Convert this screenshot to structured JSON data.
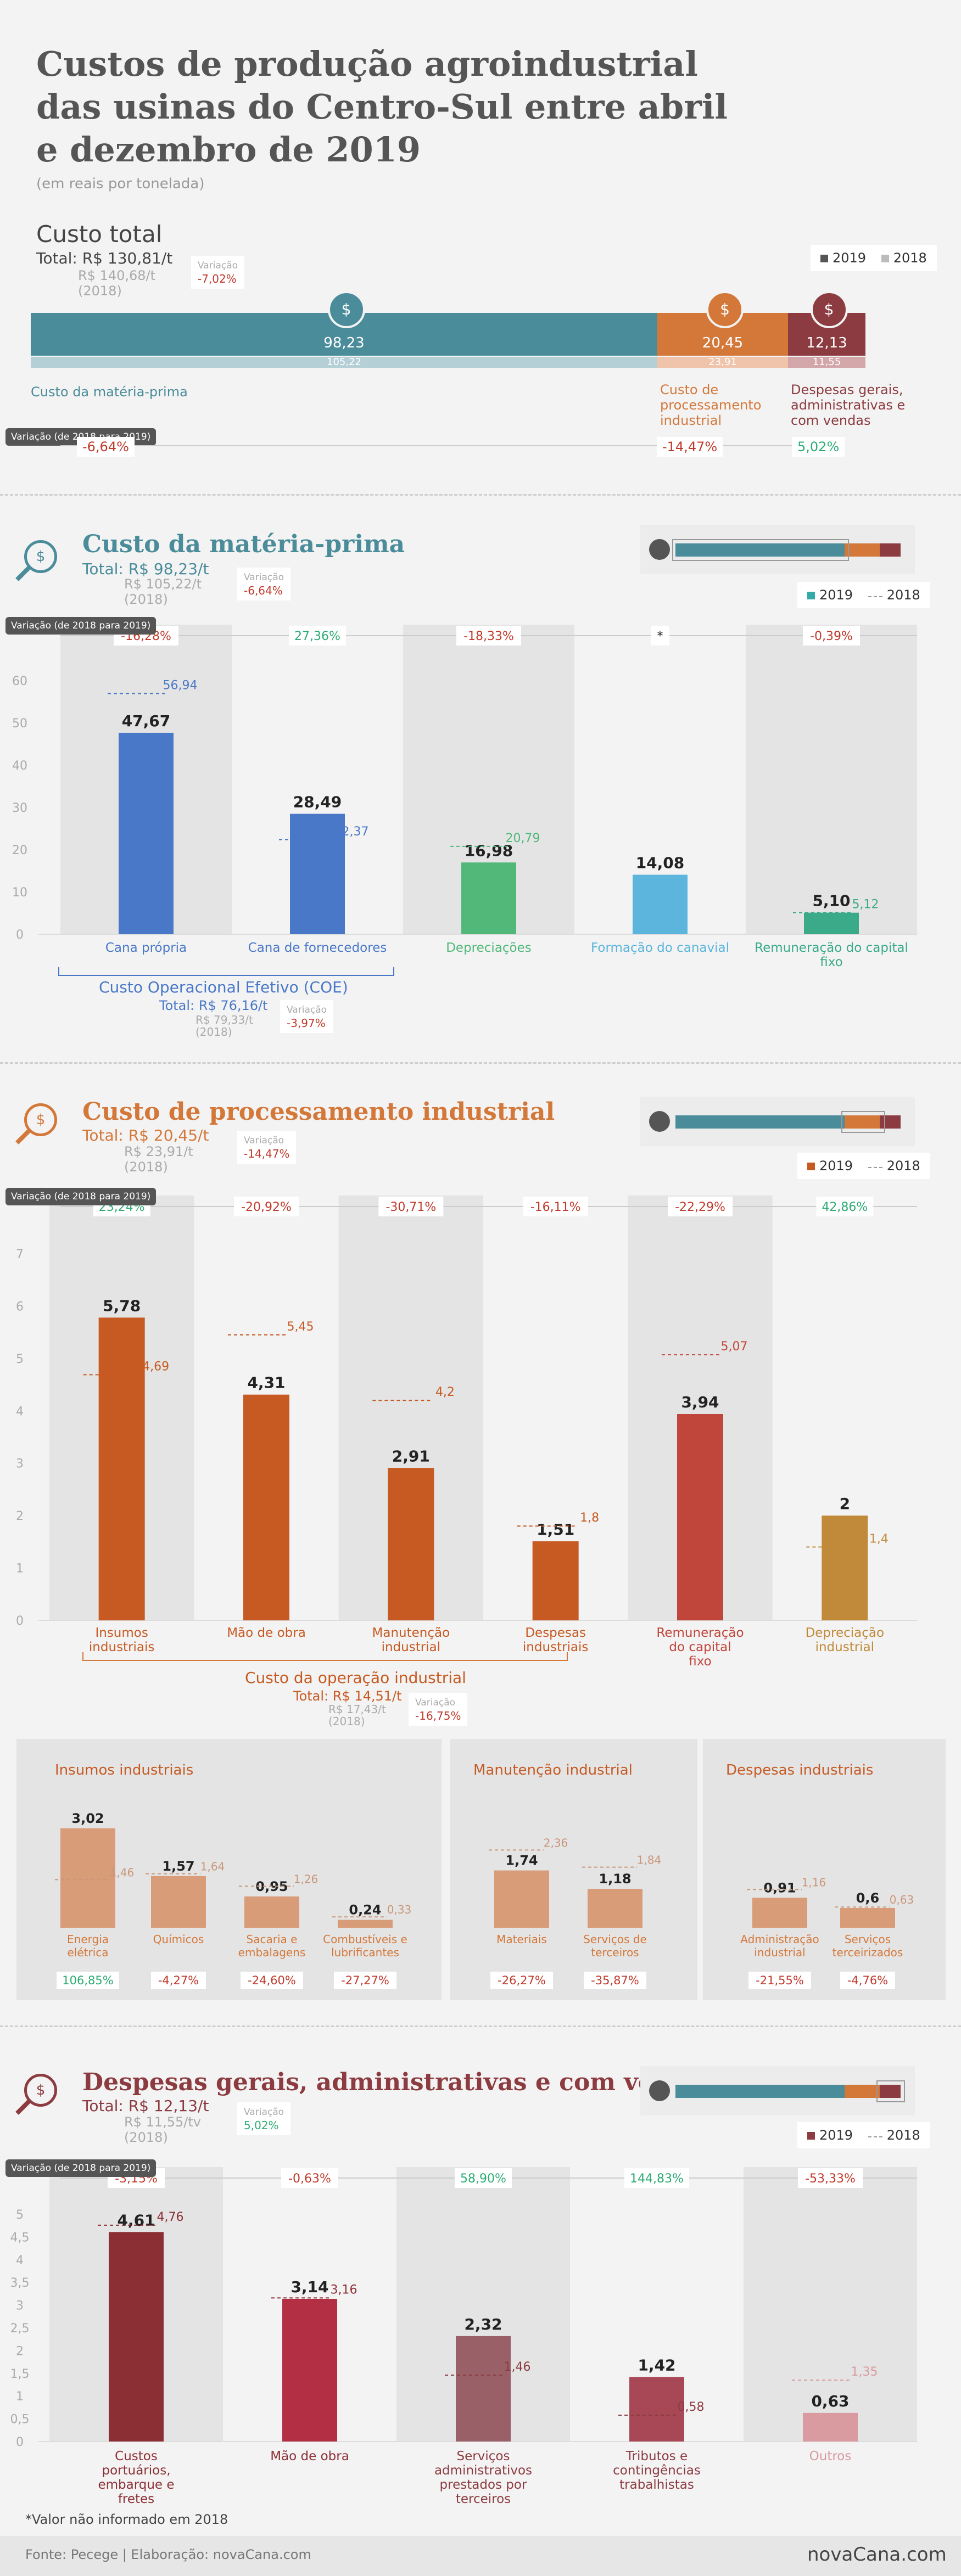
{
  "header": {
    "title": "Custos de produção agroindustrial das usinas do Centro-Sul entre abril e dezembro de 2019",
    "subtitle": "(em reais por tonelada)"
  },
  "legend": {
    "y2019": "2019",
    "y2018": "2018"
  },
  "variation_label": "Variação",
  "variation_tag": "Variação (de 2018 para 2019)",
  "colors": {
    "teal": "#4a8c9a",
    "orange": "#d4783a",
    "wine": "#8c3b40",
    "blue": "#4a78c8",
    "green": "#52b87a",
    "sky": "#5bb5dc",
    "bar_orange": "#c65a22",
    "bar_red": "#c0453a",
    "bar_ochre": "#c08a3a",
    "light_orange": "#d89c78"
  },
  "total": {
    "title": "Custo total",
    "total": "Total: R$ 130,81/t",
    "total_2018": "R$ 140,68/t",
    "year_2018": "(2018)",
    "variation": "-7,02%",
    "segments": [
      {
        "label": "Custo da matéria-prima",
        "v2019": 98.23,
        "t2019": "98,23",
        "t2018": "105,22",
        "change": "-6,64%",
        "change_dir": "down"
      },
      {
        "label": "Custo de processamento industrial",
        "v2019": 20.45,
        "t2019": "20,45",
        "t2018": "23,91",
        "change": "-14,47%",
        "change_dir": "down"
      },
      {
        "label": "Despesas gerais, administrativas e com vendas",
        "v2019": 12.13,
        "t2019": "12,13",
        "t2018": "11,55",
        "change": "5,02%",
        "change_dir": "up"
      }
    ]
  },
  "materia": {
    "title": "Custo da matéria-prima",
    "total": "Total: R$ 98,23/t",
    "total_2018": "R$ 105,22/t",
    "year_2018": "(2018)",
    "variation": "-6,64%",
    "coe": {
      "label": "Custo Operacional Efetivo (COE)",
      "total": "Total: R$ 76,16/t",
      "total_2018": "R$ 79,33/t",
      "year_2018": "(2018)",
      "variation": "-3,97%"
    }
  },
  "processamento": {
    "title": "Custo de processamento industrial",
    "total": "Total: R$ 20,45/t",
    "total_2018": "R$ 23,91/t",
    "year_2018": "(2018)",
    "variation": "-14,47%",
    "operacao": {
      "label": "Custo da operação industrial",
      "total": "Total: R$ 14,51/t",
      "total_2018": "R$ 17,43/t",
      "year_2018": "(2018)",
      "variation": "-16,75%"
    },
    "sub": [
      {
        "title": "Insumos industriais",
        "items": [
          {
            "label": "Energia elétrica",
            "v2019": 3.02,
            "t2019": "3,02",
            "v2018": 1.46,
            "t2018": "1,46",
            "change": "106,85%",
            "dir": "up"
          },
          {
            "label": "Químicos",
            "v2019": 1.57,
            "t2019": "1,57",
            "v2018": 1.64,
            "t2018": "1,64",
            "change": "-4,27%",
            "dir": "down"
          },
          {
            "label": "Sacaria e embalagens",
            "v2019": 0.95,
            "t2019": "0,95",
            "v2018": 1.26,
            "t2018": "1,26",
            "change": "-24,60%",
            "dir": "down"
          },
          {
            "label": "Combustíveis e lubrificantes",
            "v2019": 0.24,
            "t2019": "0,24",
            "v2018": 0.33,
            "t2018": "0,33",
            "change": "-27,27%",
            "dir": "down"
          }
        ]
      },
      {
        "title": "Manutenção industrial",
        "items": [
          {
            "label": "Materiais",
            "v2019": 1.74,
            "t2019": "1,74",
            "v2018": 2.36,
            "t2018": "2,36",
            "change": "-26,27%",
            "dir": "down"
          },
          {
            "label": "Serviços de terceiros",
            "v2019": 1.18,
            "t2019": "1,18",
            "v2018": 1.84,
            "t2018": "1,84",
            "change": "-35,87%",
            "dir": "down"
          }
        ]
      },
      {
        "title": "Despesas industriais",
        "items": [
          {
            "label": "Administração industrial",
            "v2019": 0.91,
            "t2019": "0,91",
            "v2018": 1.16,
            "t2018": "1,16",
            "change": "-21,55%",
            "dir": "down"
          },
          {
            "label": "Serviços terceirizados",
            "v2019": 0.6,
            "t2019": "0,6",
            "v2018": 0.63,
            "t2018": "0,63",
            "change": "-4,76%",
            "dir": "down"
          }
        ]
      }
    ]
  },
  "despesas": {
    "title": "Despesas gerais, administrativas e com vendas",
    "total": "Total: R$ 12,13/t",
    "total_2018": "R$ 11,55/tv",
    "year_2018": "(2018)",
    "variation": "5,02%"
  },
  "footnote": "*Valor não informado em 2018",
  "source": "Fonte: Pecege | Elaboração: novaCana.com",
  "brand": "novaCana.com",
  "chart_data": [
    {
      "type": "bar",
      "title": "Custo da matéria-prima",
      "ylim": [
        0,
        60
      ],
      "yticks": [
        0,
        10,
        20,
        30,
        40,
        50,
        60
      ],
      "categories": [
        "Cana própria",
        "Cana de fornecedores",
        "Depreciações",
        "Formação do canavial",
        "Remuneração do capital fixo"
      ],
      "series": [
        {
          "name": "2019",
          "values": [
            47.67,
            28.49,
            16.98,
            14.08,
            5.1
          ]
        },
        {
          "name": "2018",
          "values": [
            56.94,
            22.37,
            20.79,
            null,
            5.12
          ]
        }
      ],
      "labels2019": [
        "47,67",
        "28,49",
        "16,98",
        "14,08",
        "5,10"
      ],
      "labels2018": [
        "56,94",
        "22,37",
        "20,79",
        "",
        "5,12"
      ],
      "change": [
        "-16,28%",
        "27,36%",
        "-18,33%",
        "*",
        "-0,39%"
      ]
    },
    {
      "type": "bar",
      "title": "Custo de processamento industrial",
      "ylim": [
        0,
        7
      ],
      "yticks": [
        0,
        1,
        2,
        3,
        4,
        5,
        6,
        7
      ],
      "categories": [
        "Insumos industriais",
        "Mão de obra",
        "Manutenção industrial",
        "Despesas industriais",
        "Remuneração do capital fixo",
        "Depreciação industrial"
      ],
      "series": [
        {
          "name": "2019",
          "values": [
            5.78,
            4.31,
            2.91,
            1.51,
            3.94,
            2
          ]
        },
        {
          "name": "2018",
          "values": [
            4.69,
            5.45,
            4.2,
            1.8,
            5.07,
            1.4
          ]
        }
      ],
      "labels2019": [
        "5,78",
        "4,31",
        "2,91",
        "1,51",
        "3,94",
        "2"
      ],
      "labels2018": [
        "4,69",
        "5,45",
        "4,2",
        "1,8",
        "5,07",
        "1,4"
      ],
      "change": [
        "23,24%",
        "-20,92%",
        "-30,71%",
        "-16,11%",
        "-22,29%",
        "42,86%"
      ]
    },
    {
      "type": "bar",
      "title": "Despesas gerais, administrativas e com vendas",
      "ylim": [
        0,
        5
      ],
      "yticks": [
        0,
        0.5,
        1,
        1.5,
        2,
        2.5,
        3,
        3.5,
        4,
        4.5,
        5
      ],
      "ytick_labels": [
        "0",
        "0,5",
        "1",
        "1,5",
        "2",
        "2,5",
        "3",
        "3,5",
        "4",
        "4,5",
        "5"
      ],
      "categories": [
        "Custos portuários, embarque e fretes",
        "Mão de obra",
        "Serviços administrativos prestados por terceiros",
        "Tributos e contingências trabalhistas",
        "Outros"
      ],
      "series": [
        {
          "name": "2019",
          "values": [
            4.61,
            3.14,
            2.32,
            1.42,
            0.63
          ]
        },
        {
          "name": "2018",
          "values": [
            4.76,
            3.16,
            1.46,
            0.58,
            1.35
          ]
        }
      ],
      "labels2019": [
        "4,61",
        "3,14",
        "2,32",
        "1,42",
        "0,63"
      ],
      "labels2018": [
        "4,76",
        "3,16",
        "1,46",
        "0,58",
        "1,35"
      ],
      "change": [
        "-3,15%",
        "-0,63%",
        "58,90%",
        "144,83%",
        "-53,33%"
      ]
    }
  ]
}
